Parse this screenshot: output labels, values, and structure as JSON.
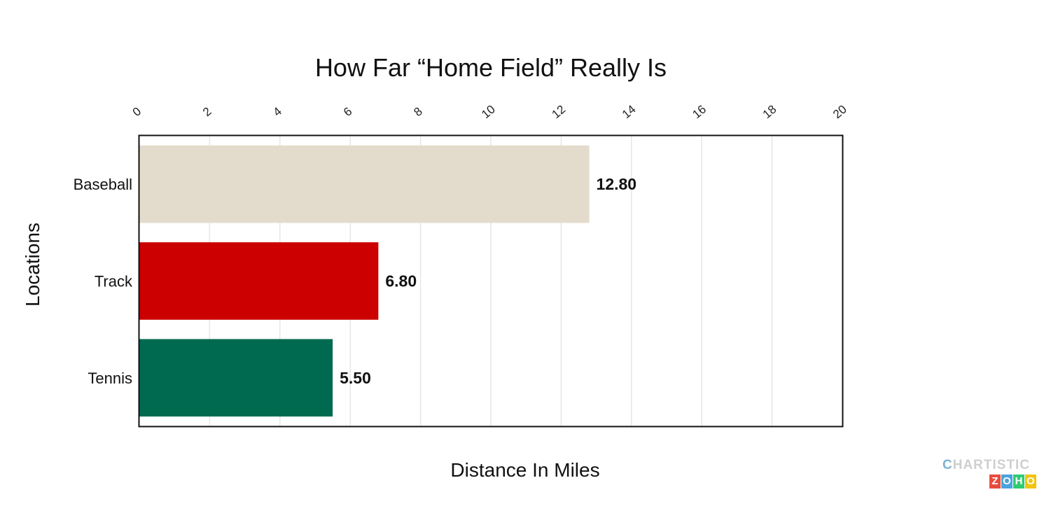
{
  "chart_data": {
    "type": "bar",
    "orientation": "horizontal",
    "title": "How Far “Home Field” Really Is",
    "xlabel": "Distance In Miles",
    "ylabel": "Locations",
    "categories": [
      "Baseball",
      "Track",
      "Tennis"
    ],
    "values": [
      12.8,
      6.8,
      5.5
    ],
    "value_labels": [
      "12.80",
      "6.80",
      "5.50"
    ],
    "bar_colors": [
      "#e3dbcb",
      "#cc0000",
      "#006a50"
    ],
    "xlim": [
      0,
      20
    ],
    "x_ticks": [
      "0",
      "2",
      "4",
      "6",
      "8",
      "10",
      "12",
      "14",
      "16",
      "18",
      "20"
    ],
    "x_axis_position": "top",
    "grid": true,
    "legend": "none"
  },
  "watermark": {
    "top": "CHARTISTIC",
    "letters": [
      "Z",
      "O",
      "H",
      "O"
    ],
    "letter_colors": [
      "#e84c3d",
      "#4aa3df",
      "#2ecc71",
      "#f1c40f"
    ]
  }
}
